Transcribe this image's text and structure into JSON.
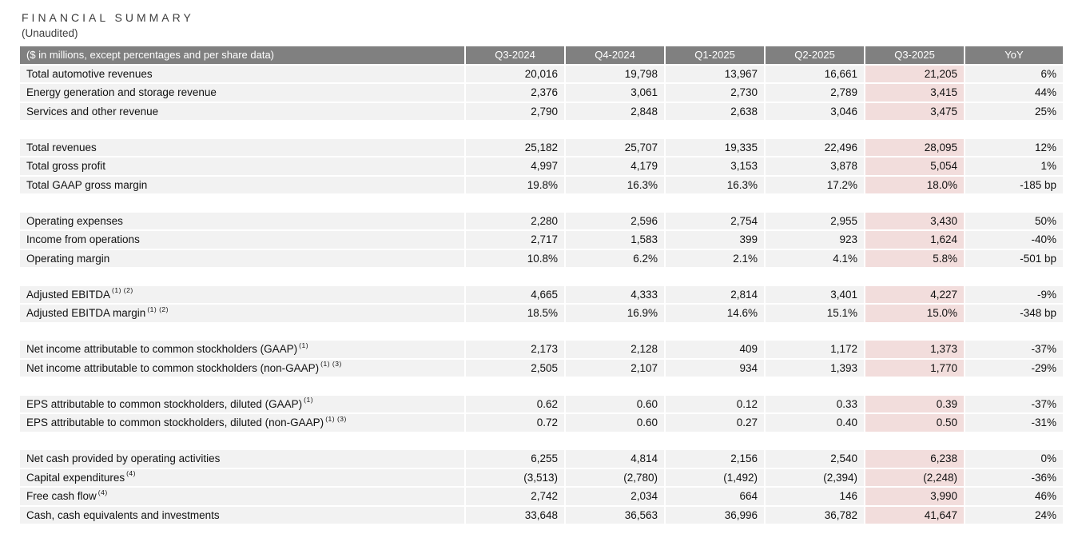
{
  "page": {
    "title": "FINANCIAL SUMMARY",
    "subtitle": "(Unaudited)"
  },
  "colors": {
    "header_bg": "#808080",
    "header_text": "#ffffff",
    "row_bg": "#f2f2f2",
    "highlight_bg": "#f2dddc",
    "text": "#111111"
  },
  "table": {
    "corner_label": "($ in millions, except percentages and per share data)",
    "columns": [
      "Q3-2024",
      "Q4-2024",
      "Q1-2025",
      "Q2-2025",
      "Q3-2025",
      "YoY"
    ],
    "highlight_column": "Q3-2025",
    "highlight_column_index": 4,
    "sections": [
      {
        "rows": [
          {
            "label": "Total automotive revenues",
            "sup": "",
            "values": [
              "20,016",
              "19,798",
              "13,967",
              "16,661",
              "21,205",
              "6%"
            ]
          },
          {
            "label": "Energy generation and storage revenue",
            "sup": "",
            "values": [
              "2,376",
              "3,061",
              "2,730",
              "2,789",
              "3,415",
              "44%"
            ]
          },
          {
            "label": "Services and other revenue",
            "sup": "",
            "values": [
              "2,790",
              "2,848",
              "2,638",
              "3,046",
              "3,475",
              "25%"
            ]
          }
        ]
      },
      {
        "rows": [
          {
            "label": "Total revenues",
            "sup": "",
            "values": [
              "25,182",
              "25,707",
              "19,335",
              "22,496",
              "28,095",
              "12%"
            ]
          },
          {
            "label": "Total gross profit",
            "sup": "",
            "values": [
              "4,997",
              "4,179",
              "3,153",
              "3,878",
              "5,054",
              "1%"
            ]
          },
          {
            "label": "Total GAAP gross margin",
            "sup": "",
            "values": [
              "19.8%",
              "16.3%",
              "16.3%",
              "17.2%",
              "18.0%",
              "-185 bp"
            ]
          }
        ]
      },
      {
        "rows": [
          {
            "label": "Operating expenses",
            "sup": "",
            "values": [
              "2,280",
              "2,596",
              "2,754",
              "2,955",
              "3,430",
              "50%"
            ]
          },
          {
            "label": "Income from operations",
            "sup": "",
            "values": [
              "2,717",
              "1,583",
              "399",
              "923",
              "1,624",
              "-40%"
            ]
          },
          {
            "label": "Operating margin",
            "sup": "",
            "values": [
              "10.8%",
              "6.2%",
              "2.1%",
              "4.1%",
              "5.8%",
              "-501 bp"
            ]
          }
        ]
      },
      {
        "rows": [
          {
            "label": "Adjusted EBITDA",
            "sup": "(1) (2)",
            "values": [
              "4,665",
              "4,333",
              "2,814",
              "3,401",
              "4,227",
              "-9%"
            ]
          },
          {
            "label": "Adjusted EBITDA margin",
            "sup": "(1) (2)",
            "values": [
              "18.5%",
              "16.9%",
              "14.6%",
              "15.1%",
              "15.0%",
              "-348 bp"
            ]
          }
        ]
      },
      {
        "rows": [
          {
            "label": "Net income attributable to common stockholders (GAAP)",
            "sup": "(1)",
            "values": [
              "2,173",
              "2,128",
              "409",
              "1,172",
              "1,373",
              "-37%"
            ]
          },
          {
            "label": "Net income attributable to common stockholders (non-GAAP)",
            "sup": "(1) (3)",
            "values": [
              "2,505",
              "2,107",
              "934",
              "1,393",
              "1,770",
              "-29%"
            ]
          }
        ]
      },
      {
        "rows": [
          {
            "label": "EPS attributable to common stockholders, diluted (GAAP)",
            "sup": "(1)",
            "values": [
              "0.62",
              "0.60",
              "0.12",
              "0.33",
              "0.39",
              "-37%"
            ]
          },
          {
            "label": "EPS attributable to common stockholders, diluted (non-GAAP)",
            "sup": "(1) (3)",
            "values": [
              "0.72",
              "0.60",
              "0.27",
              "0.40",
              "0.50",
              "-31%"
            ]
          }
        ]
      },
      {
        "rows": [
          {
            "label": "Net cash provided by operating activities",
            "sup": "",
            "values": [
              "6,255",
              "4,814",
              "2,156",
              "2,540",
              "6,238",
              "0%"
            ]
          },
          {
            "label": "Capital expenditures",
            "sup": "(4)",
            "values": [
              "(3,513)",
              "(2,780)",
              "(1,492)",
              "(2,394)",
              "(2,248)",
              "-36%"
            ]
          },
          {
            "label": "Free cash flow",
            "sup": "(4)",
            "values": [
              "2,742",
              "2,034",
              "664",
              "146",
              "3,990",
              "46%"
            ]
          },
          {
            "label": "Cash, cash equivalents and investments",
            "sup": "",
            "values": [
              "33,648",
              "36,563",
              "36,996",
              "36,782",
              "41,647",
              "24%"
            ]
          }
        ]
      }
    ]
  }
}
